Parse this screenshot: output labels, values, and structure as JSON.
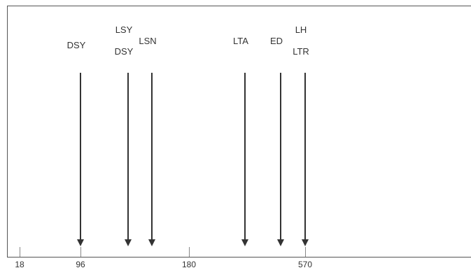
{
  "diagram": {
    "axis_ticks": [
      {
        "label": "18",
        "value": 18
      },
      {
        "label": "96",
        "value": 96
      },
      {
        "label": "180",
        "value": 180
      },
      {
        "label": "570",
        "value": 570
      }
    ],
    "events": [
      {
        "labels": [
          "DSY"
        ]
      },
      {
        "labels": [
          "LSY",
          "DSY"
        ]
      },
      {
        "labels": [
          "LSN"
        ]
      },
      {
        "labels": [
          "LTA"
        ]
      },
      {
        "labels": [
          "ED"
        ]
      },
      {
        "labels": [
          "LH",
          "LTR"
        ]
      }
    ]
  }
}
